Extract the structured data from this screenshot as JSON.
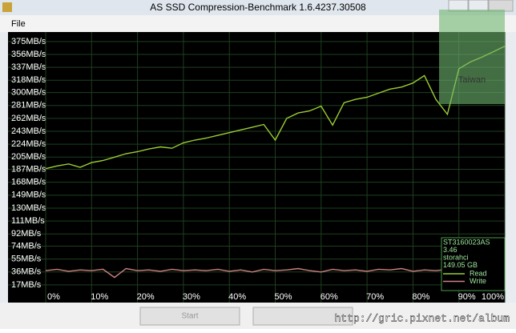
{
  "window": {
    "title": "AS SSD Compression-Benchmark 1.6.4237.30508",
    "menu": [
      "File"
    ],
    "buttons": [
      "Start"
    ],
    "badge": "Taiwan"
  },
  "watermark": "http://gric.pixnet.net/album",
  "chart_data": {
    "type": "line",
    "x": [
      0,
      2.5,
      5,
      7.5,
      10,
      12.5,
      15,
      17.5,
      20,
      22.5,
      25,
      27.5,
      30,
      32.5,
      35,
      37.5,
      40,
      42.5,
      45,
      47.5,
      50,
      52.5,
      55,
      57.5,
      60,
      62.5,
      65,
      67.5,
      70,
      72.5,
      75,
      77.5,
      80,
      82.5,
      85,
      87.5,
      90,
      92.5,
      95,
      97.5,
      100
    ],
    "series": [
      {
        "name": "Read",
        "color": "#9acd32",
        "values": [
          188,
          192,
          195,
          190,
          197,
          200,
          205,
          210,
          213,
          217,
          220,
          218,
          226,
          230,
          233,
          237,
          241,
          245,
          249,
          253,
          230,
          262,
          270,
          273,
          280,
          252,
          285,
          290,
          293,
          299,
          305,
          308,
          314,
          325,
          290,
          268,
          335,
          345,
          352,
          360,
          368
        ]
      },
      {
        "name": "Write",
        "color": "#d08080",
        "values": [
          38,
          40,
          37,
          39,
          38,
          40,
          28,
          41,
          38,
          39,
          37,
          40,
          38,
          39,
          38,
          40,
          37,
          39,
          36,
          40,
          38,
          39,
          41,
          38,
          36,
          40,
          38,
          39,
          37,
          40,
          39,
          41,
          37,
          39,
          38,
          40,
          35,
          38,
          40,
          39,
          38
        ]
      }
    ],
    "info": [
      "ST3160023AS",
      "3.46",
      "storahci",
      "149.05 GB"
    ],
    "xlim": [
      0,
      100
    ],
    "xticks": [
      {
        "value": 0,
        "label": "0%"
      },
      {
        "value": 10,
        "label": "10%"
      },
      {
        "value": 20,
        "label": "20%"
      },
      {
        "value": 30,
        "label": "30%"
      },
      {
        "value": 40,
        "label": "40%"
      },
      {
        "value": 50,
        "label": "50%"
      },
      {
        "value": 60,
        "label": "60%"
      },
      {
        "value": 70,
        "label": "70%"
      },
      {
        "value": 80,
        "label": "80%"
      },
      {
        "value": 90,
        "label": "90%"
      },
      {
        "value": 100,
        "label": "100%"
      }
    ],
    "ylim": [
      -9,
      389
    ],
    "yticks": [
      {
        "value": 17,
        "label": "17MB/s"
      },
      {
        "value": 36,
        "label": "36MB/s"
      },
      {
        "value": 55,
        "label": "55MB/s"
      },
      {
        "value": 74,
        "label": "74MB/s"
      },
      {
        "value": 92,
        "label": "92MB/s"
      },
      {
        "value": 111,
        "label": "111MB/s"
      },
      {
        "value": 130,
        "label": "130MB/s"
      },
      {
        "value": 149,
        "label": "149MB/s"
      },
      {
        "value": 168,
        "label": "168MB/s"
      },
      {
        "value": 187,
        "label": "187MB/s"
      },
      {
        "value": 205,
        "label": "205MB/s"
      },
      {
        "value": 224,
        "label": "224MB/s"
      },
      {
        "value": 243,
        "label": "243MB/s"
      },
      {
        "value": 262,
        "label": "262MB/s"
      },
      {
        "value": 281,
        "label": "281MB/s"
      },
      {
        "value": 300,
        "label": "300MB/s"
      },
      {
        "value": 318,
        "label": "318MB/s"
      },
      {
        "value": 337,
        "label": "337MB/s"
      },
      {
        "value": 356,
        "label": "356MB/s"
      },
      {
        "value": 375,
        "label": "375MB/s"
      }
    ],
    "grid": true
  }
}
